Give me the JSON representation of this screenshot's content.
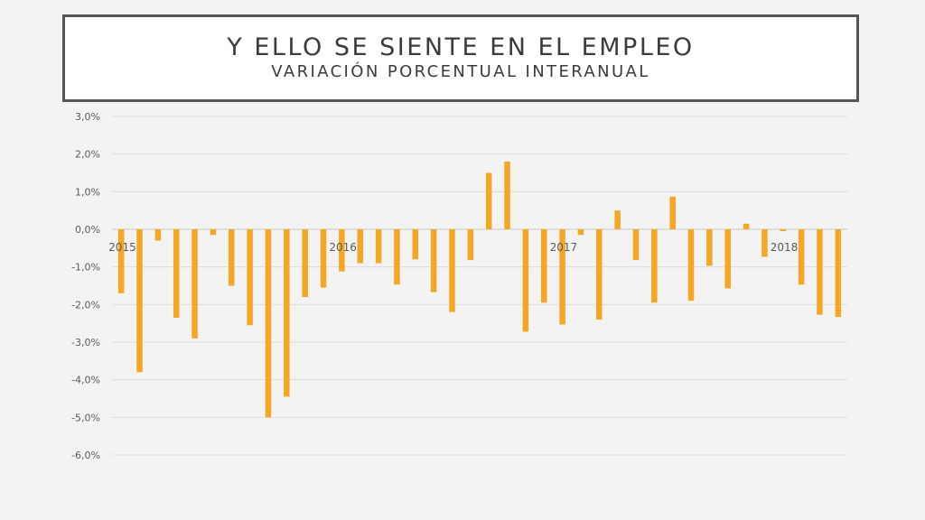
{
  "header": {
    "title": "Y ELLO SE SIENTE EN EL EMPLEO",
    "subtitle": "VARIACIÓN PORCENTUAL INTERANUAL"
  },
  "colors": {
    "bar": "#f5a623",
    "grid": "#dcdcdc",
    "axis_text": "#5a5a5a",
    "background": "#f3f3f3"
  },
  "chart_data": {
    "type": "bar",
    "title": "Y ELLO SE SIENTE EN EL EMPLEO",
    "subtitle": "VARIACIÓN PORCENTUAL INTERANUAL",
    "xlabel": "",
    "ylabel": "",
    "ylim": [
      -6.0,
      3.0
    ],
    "yticks": [
      3.0,
      2.0,
      1.0,
      0.0,
      -1.0,
      -2.0,
      -3.0,
      -4.0,
      -5.0,
      -6.0
    ],
    "ytick_labels": [
      "3,0%",
      "2,0%",
      "1,0%",
      "0,0%",
      "-1,0%",
      "-2,0%",
      "-3,0%",
      "-4,0%",
      "-5,0%",
      "-6,0%"
    ],
    "x_labels": [
      {
        "label": "2015",
        "index": 0
      },
      {
        "label": "2016",
        "index": 12
      },
      {
        "label": "2017",
        "index": 24
      },
      {
        "label": "2018",
        "index": 36
      }
    ],
    "grid": true,
    "legend": "none",
    "series": [
      {
        "values": [
          -1.7,
          -3.8,
          -0.3,
          -2.35,
          -2.9,
          -0.15,
          -1.5,
          -2.55,
          -5.0,
          -4.45,
          -1.8,
          -1.55,
          -1.12,
          -0.9,
          -0.9,
          -1.47,
          -0.8,
          -1.67,
          -2.2,
          -0.82,
          1.5,
          1.8,
          -2.72,
          -1.95,
          -2.53,
          -0.15,
          -2.4,
          0.5,
          -0.82,
          -1.95,
          0.87,
          -1.9,
          -0.97,
          -1.57,
          0.15,
          -0.73,
          -0.05,
          -1.47,
          -2.27,
          -2.33
        ]
      }
    ]
  }
}
